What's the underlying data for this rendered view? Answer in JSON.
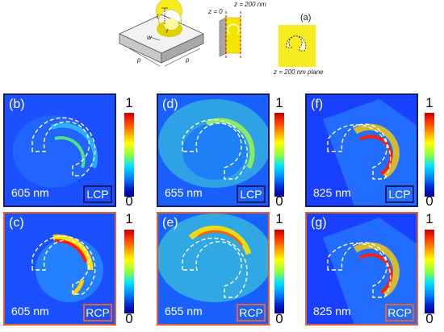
{
  "top_schematic": {
    "label_a": "(a)",
    "dim_t": "t",
    "dim_w": "w",
    "dim_r": "r",
    "dim_p1": "p",
    "dim_p2": "p",
    "z0": "z = 0",
    "z200": "z = 200 nm",
    "plane": "z = 200 nm plane"
  },
  "colorbar": {
    "max": "1",
    "min": "0"
  },
  "colors": {
    "lcp_border": "#1a1a6e",
    "rcp_border": "#e8602c",
    "particle": "#f2e600",
    "field_low": "#1030ff"
  },
  "panels": [
    {
      "letter": "(b)",
      "wavelength": "605 nm",
      "pol": "LCP"
    },
    {
      "letter": "(d)",
      "wavelength": "655 nm",
      "pol": "LCP"
    },
    {
      "letter": "(f)",
      "wavelength": "825 nm",
      "pol": "LCP"
    },
    {
      "letter": "(c)",
      "wavelength": "605 nm",
      "pol": "RCP"
    },
    {
      "letter": "(e)",
      "wavelength": "655 nm",
      "pol": "RCP"
    },
    {
      "letter": "(g)",
      "wavelength": "825 nm",
      "pol": "RCP"
    }
  ]
}
